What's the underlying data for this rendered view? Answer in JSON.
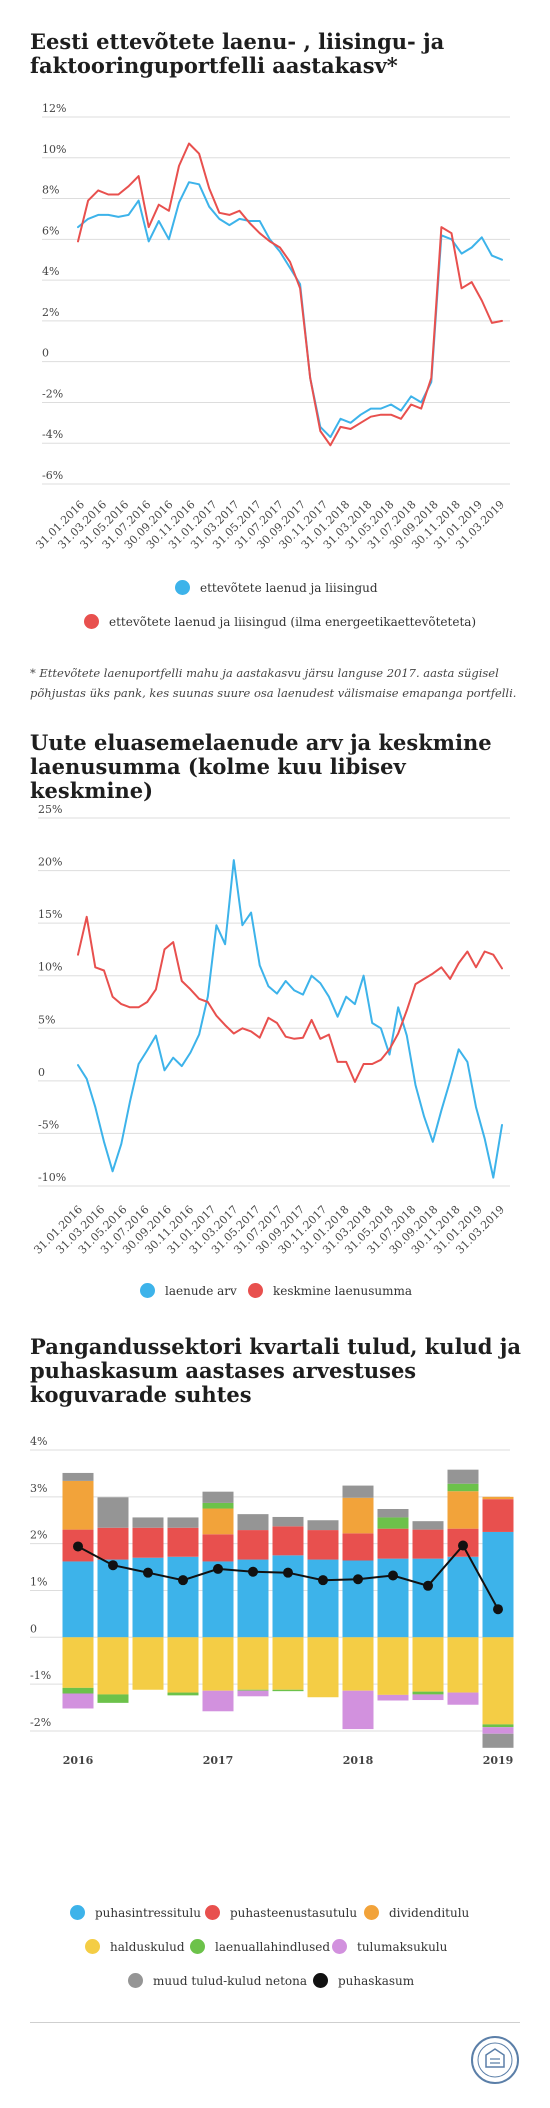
{
  "chart1_title": "Eesti ettevõtete laenu- , liisingu- ja faktooringuportfelli aastakasv*",
  "chart1_footnote": "* Ettevõtete laenuportfelli mahu ja aastakasvu järsu languse 2017. aasta sügisel põhjustas üks pank, kes suunas suure osa laenudest välismaise emapanga portfelli.",
  "chart2_title": "Uute eluasemelaenude arv ja keskmine laenusumma (kolme kuu libisev keskmine)",
  "chart3_title": "Pangandussektori kvartali tulud, kulud ja puhaskasum aastases arvestuses koguvarade suhtes",
  "colors": {
    "blue": "#3db3ea",
    "red": "#e8504e",
    "orange": "#f2a33a",
    "yellow": "#f4cd45",
    "green": "#6cc24a",
    "purple": "#d291de",
    "gray": "#959595",
    "black": "#111111",
    "grid": "#dddddd"
  },
  "chart_data": [
    {
      "type": "line",
      "ytick_labels": [
        "12%",
        "10%",
        "8%",
        "6%",
        "4%",
        "2%",
        "0",
        "-2%",
        "-4%",
        "-6%"
      ],
      "ylim": [
        -6,
        12
      ],
      "x_labels": [
        "31.01.2016",
        "31.03.2016",
        "31.05.2016",
        "31.07.2016",
        "30.09.2016",
        "30.11.2016",
        "31.01.2017",
        "31.03.2017",
        "31.05.2017",
        "31.07.2017",
        "30.09.2017",
        "30.11.2017",
        "31.01.2018",
        "31.03.2018",
        "31.05.2018",
        "31.07.2018",
        "30.09.2018",
        "30.11.2018",
        "31.01.2019",
        "31.03.2019"
      ],
      "x_index_range": [
        0,
        38
      ],
      "grid": "horizontal",
      "series": [
        {
          "name": "ettevõtete laenud ja liisingud",
          "color": "blue",
          "points": [
            [
              0,
              6.6
            ],
            [
              1,
              7.0
            ],
            [
              2,
              7.2
            ],
            [
              3,
              7.2
            ],
            [
              4,
              7.1
            ],
            [
              5,
              7.2
            ],
            [
              6,
              7.9
            ],
            [
              7,
              5.9
            ],
            [
              8,
              6.9
            ],
            [
              9,
              6.0
            ],
            [
              10,
              7.8
            ],
            [
              11,
              8.8
            ],
            [
              12,
              8.7
            ],
            [
              13,
              7.6
            ],
            [
              14,
              7.0
            ],
            [
              15,
              6.7
            ],
            [
              16,
              7.0
            ],
            [
              17,
              6.9
            ],
            [
              18,
              6.9
            ],
            [
              19,
              6.0
            ],
            [
              20,
              5.4
            ],
            [
              21,
              4.6
            ],
            [
              22,
              3.8
            ],
            [
              23,
              -0.8
            ],
            [
              24,
              -3.2
            ],
            [
              25,
              -3.7
            ],
            [
              26,
              -2.8
            ],
            [
              27,
              -3.0
            ],
            [
              28,
              -2.6
            ],
            [
              29,
              -2.3
            ],
            [
              30,
              -2.3
            ],
            [
              31,
              -2.1
            ],
            [
              32,
              -2.4
            ],
            [
              33,
              -1.7
            ],
            [
              34,
              -2.0
            ],
            [
              35,
              -1.0
            ],
            [
              36,
              6.2
            ],
            [
              37,
              6.0
            ],
            [
              38,
              5.3
            ],
            [
              39,
              5.6
            ],
            [
              40,
              6.1
            ],
            [
              41,
              5.2
            ],
            [
              42,
              5.0
            ]
          ]
        },
        {
          "name": "ettevõtete laenud ja liisingud (ilma energeetikaettevõteteta)",
          "color": "red",
          "points": [
            [
              0,
              5.9
            ],
            [
              1,
              7.9
            ],
            [
              2,
              8.4
            ],
            [
              3,
              8.2
            ],
            [
              4,
              8.2
            ],
            [
              5,
              8.6
            ],
            [
              6,
              9.1
            ],
            [
              7,
              6.6
            ],
            [
              8,
              7.7
            ],
            [
              9,
              7.4
            ],
            [
              10,
              9.6
            ],
            [
              11,
              10.7
            ],
            [
              12,
              10.2
            ],
            [
              13,
              8.5
            ],
            [
              14,
              7.3
            ],
            [
              15,
              7.2
            ],
            [
              16,
              7.4
            ],
            [
              17,
              6.8
            ],
            [
              18,
              6.3
            ],
            [
              19,
              5.9
            ],
            [
              20,
              5.6
            ],
            [
              21,
              4.9
            ],
            [
              22,
              3.6
            ],
            [
              23,
              -0.8
            ],
            [
              24,
              -3.4
            ],
            [
              25,
              -4.1
            ],
            [
              26,
              -3.2
            ],
            [
              27,
              -3.3
            ],
            [
              28,
              -3.0
            ],
            [
              29,
              -2.7
            ],
            [
              30,
              -2.6
            ],
            [
              31,
              -2.6
            ],
            [
              32,
              -2.8
            ],
            [
              33,
              -2.1
            ],
            [
              34,
              -2.3
            ],
            [
              35,
              -0.8
            ],
            [
              36,
              6.6
            ],
            [
              37,
              6.3
            ],
            [
              38,
              3.6
            ],
            [
              39,
              3.9
            ],
            [
              40,
              3.0
            ],
            [
              41,
              1.9
            ],
            [
              42,
              2.0
            ]
          ]
        }
      ]
    },
    {
      "type": "line",
      "ytick_labels": [
        "25%",
        "20%",
        "15%",
        "10%",
        "5%",
        "0",
        "-5%",
        "-10%"
      ],
      "ylim": [
        -10,
        25
      ],
      "x_labels": [
        "31.01.2016",
        "31.03.2016",
        "31.05.2016",
        "31.07.2016",
        "30.09.2016",
        "30.11.2016",
        "31.01.2017",
        "31.03.2017",
        "31.05.2017",
        "31.07.2017",
        "30.09.2017",
        "30.11.2017",
        "31.01.2018",
        "31.03.2018",
        "31.05.2018",
        "31.07.2018",
        "30.09.2018",
        "30.11.2018",
        "31.01.2019",
        "31.03.2019"
      ],
      "x_index_range": [
        0,
        38
      ],
      "grid": "horizontal",
      "series": [
        {
          "name": "laenude arv",
          "color": "blue",
          "points": [
            [
              0,
              1.5
            ],
            [
              1,
              0.2
            ],
            [
              2,
              -2.5
            ],
            [
              3,
              -5.8
            ],
            [
              4,
              -8.6
            ],
            [
              5,
              -6.0
            ],
            [
              6,
              -2.0
            ],
            [
              7,
              1.6
            ],
            [
              8,
              2.9
            ],
            [
              9,
              4.3
            ],
            [
              10,
              1.0
            ],
            [
              11,
              2.2
            ],
            [
              12,
              1.4
            ],
            [
              13,
              2.7
            ],
            [
              14,
              4.4
            ],
            [
              15,
              8.0
            ],
            [
              16,
              14.8
            ],
            [
              17,
              13.0
            ],
            [
              18,
              21.0
            ],
            [
              19,
              14.8
            ],
            [
              20,
              16.0
            ],
            [
              21,
              11.0
            ],
            [
              22,
              9.0
            ],
            [
              23,
              8.3
            ],
            [
              24,
              9.5
            ],
            [
              25,
              8.6
            ],
            [
              26,
              8.2
            ],
            [
              27,
              10.0
            ],
            [
              28,
              9.3
            ],
            [
              29,
              8.0
            ],
            [
              30,
              6.1
            ],
            [
              31,
              8.0
            ],
            [
              32,
              7.3
            ],
            [
              33,
              10.0
            ],
            [
              34,
              5.5
            ],
            [
              35,
              5.0
            ],
            [
              36,
              2.5
            ],
            [
              37,
              7.0
            ],
            [
              38,
              4.3
            ],
            [
              39,
              -0.4
            ],
            [
              40,
              -3.4
            ],
            [
              41,
              -5.8
            ],
            [
              42,
              -2.8
            ],
            [
              43,
              0.0
            ],
            [
              44,
              3.0
            ],
            [
              45,
              1.8
            ],
            [
              46,
              -2.5
            ],
            [
              47,
              -5.5
            ],
            [
              48,
              -9.2
            ],
            [
              49,
              -4.2
            ]
          ]
        },
        {
          "name": "keskmine laenusumma",
          "color": "red",
          "points": [
            [
              0,
              12.0
            ],
            [
              1,
              15.6
            ],
            [
              2,
              10.8
            ],
            [
              3,
              10.5
            ],
            [
              4,
              8.0
            ],
            [
              5,
              7.3
            ],
            [
              6,
              7.0
            ],
            [
              7,
              7.0
            ],
            [
              8,
              7.5
            ],
            [
              9,
              8.7
            ],
            [
              10,
              12.5
            ],
            [
              11,
              13.2
            ],
            [
              12,
              9.5
            ],
            [
              13,
              8.7
            ],
            [
              14,
              7.8
            ],
            [
              15,
              7.5
            ],
            [
              16,
              6.2
            ],
            [
              17,
              5.3
            ],
            [
              18,
              4.5
            ],
            [
              19,
              5.0
            ],
            [
              20,
              4.7
            ],
            [
              21,
              4.1
            ],
            [
              22,
              6.0
            ],
            [
              23,
              5.5
            ],
            [
              24,
              4.2
            ],
            [
              25,
              4.0
            ],
            [
              26,
              4.1
            ],
            [
              27,
              5.8
            ],
            [
              28,
              4.0
            ],
            [
              29,
              4.4
            ],
            [
              30,
              1.8
            ],
            [
              31,
              1.8
            ],
            [
              32,
              -0.1
            ],
            [
              33,
              1.6
            ],
            [
              34,
              1.6
            ],
            [
              35,
              2.0
            ],
            [
              36,
              3.0
            ],
            [
              37,
              4.5
            ],
            [
              38,
              6.7
            ],
            [
              39,
              9.2
            ],
            [
              40,
              9.7
            ],
            [
              41,
              10.2
            ],
            [
              42,
              10.8
            ],
            [
              43,
              9.7
            ],
            [
              44,
              11.2
            ],
            [
              45,
              12.3
            ],
            [
              46,
              10.8
            ],
            [
              47,
              12.3
            ],
            [
              48,
              12.0
            ],
            [
              49,
              10.7
            ]
          ]
        }
      ]
    },
    {
      "type": "bar",
      "stacked": true,
      "ytick_labels": [
        "4%",
        "3%",
        "2%",
        "1%",
        "0",
        "-1%",
        "-2%"
      ],
      "ylim": [
        -2.3,
        4
      ],
      "x_labels": [
        "2016",
        "2017",
        "2018",
        "2019"
      ],
      "grid": "horizontal",
      "series": [
        {
          "name": "puhasintressitulu",
          "color": "blue",
          "values": [
            1.62,
            1.66,
            1.7,
            1.72,
            1.62,
            1.66,
            1.75,
            1.66,
            1.64,
            1.68,
            1.68,
            1.72,
            2.25
          ]
        },
        {
          "name": "puhasteenustasutulu",
          "color": "red",
          "values": [
            0.68,
            0.68,
            0.64,
            0.62,
            0.58,
            0.63,
            0.62,
            0.63,
            0.58,
            0.64,
            0.62,
            0.6,
            0.7
          ]
        },
        {
          "name": "dividenditulu",
          "color": "orange",
          "values": [
            1.04,
            0,
            0,
            0,
            0.55,
            0,
            0,
            0,
            0.76,
            0,
            0,
            0.8,
            0.05
          ]
        },
        {
          "name": "halduskulud",
          "color": "yellow",
          "values": [
            -1.08,
            -1.22,
            -1.12,
            -1.18,
            -1.14,
            -1.12,
            -1.12,
            -1.28,
            -1.14,
            -1.23,
            -1.16,
            -1.18,
            -1.86
          ]
        },
        {
          "name": "laenuallahindlused",
          "color": "green",
          "values": [
            -0.12,
            -0.18,
            0.0,
            -0.06,
            0.12,
            -0.02,
            -0.03,
            0.0,
            0.0,
            0.24,
            -0.06,
            0.16,
            -0.06
          ]
        },
        {
          "name": "tulumaksukulu",
          "color": "purple",
          "values": [
            -0.32,
            0,
            0,
            0,
            -0.44,
            -0.12,
            0,
            0,
            -0.82,
            -0.12,
            -0.12,
            -0.26,
            -0.14
          ]
        },
        {
          "name": "muud tulud-kulud netona",
          "color": "gray",
          "values": [
            0.17,
            0.65,
            0.22,
            0.22,
            0.24,
            0.34,
            0.2,
            0.21,
            0.26,
            0.18,
            0.18,
            0.3,
            -0.3
          ]
        },
        {
          "name": "puhaskasum",
          "color": "black",
          "type": "line",
          "values": [
            1.94,
            1.54,
            1.38,
            1.22,
            1.46,
            1.4,
            1.38,
            1.22,
            1.24,
            1.32,
            1.1,
            1.96,
            0.6
          ]
        }
      ]
    }
  ]
}
